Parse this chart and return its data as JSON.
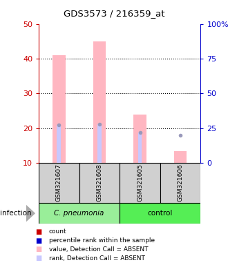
{
  "title": "GDS3573 / 216359_at",
  "samples": [
    "GSM321607",
    "GSM321608",
    "GSM321605",
    "GSM321606"
  ],
  "bar_values_absent": [
    41,
    45,
    24,
    13.5
  ],
  "rank_values_absent": [
    27.5,
    28,
    22,
    null
  ],
  "dot_rank_absent": [
    27.5,
    28,
    22,
    20
  ],
  "ylim_left": [
    10,
    50
  ],
  "ylim_right": [
    0,
    100
  ],
  "yticks_left": [
    10,
    20,
    30,
    40,
    50
  ],
  "ytick_labels_right": [
    "0",
    "25",
    "50",
    "75",
    "100%"
  ],
  "bar_color_absent": "#FFB6C1",
  "rank_bar_color_absent": "#C8C8FF",
  "dot_color_absent": "#9999BB",
  "left_axis_color": "#CC0000",
  "right_axis_color": "#0000CC",
  "legend_items": [
    {
      "label": "count",
      "color": "#CC0000"
    },
    {
      "label": "percentile rank within the sample",
      "color": "#0000CC"
    },
    {
      "label": "value, Detection Call = ABSENT",
      "color": "#FFB6C1"
    },
    {
      "label": "rank, Detection Call = ABSENT",
      "color": "#C8C8FF"
    }
  ],
  "group1_label": "C. pneumonia",
  "group2_label": "control",
  "group1_color": "#99EE99",
  "group2_color": "#55EE55",
  "infection_label": "infection"
}
